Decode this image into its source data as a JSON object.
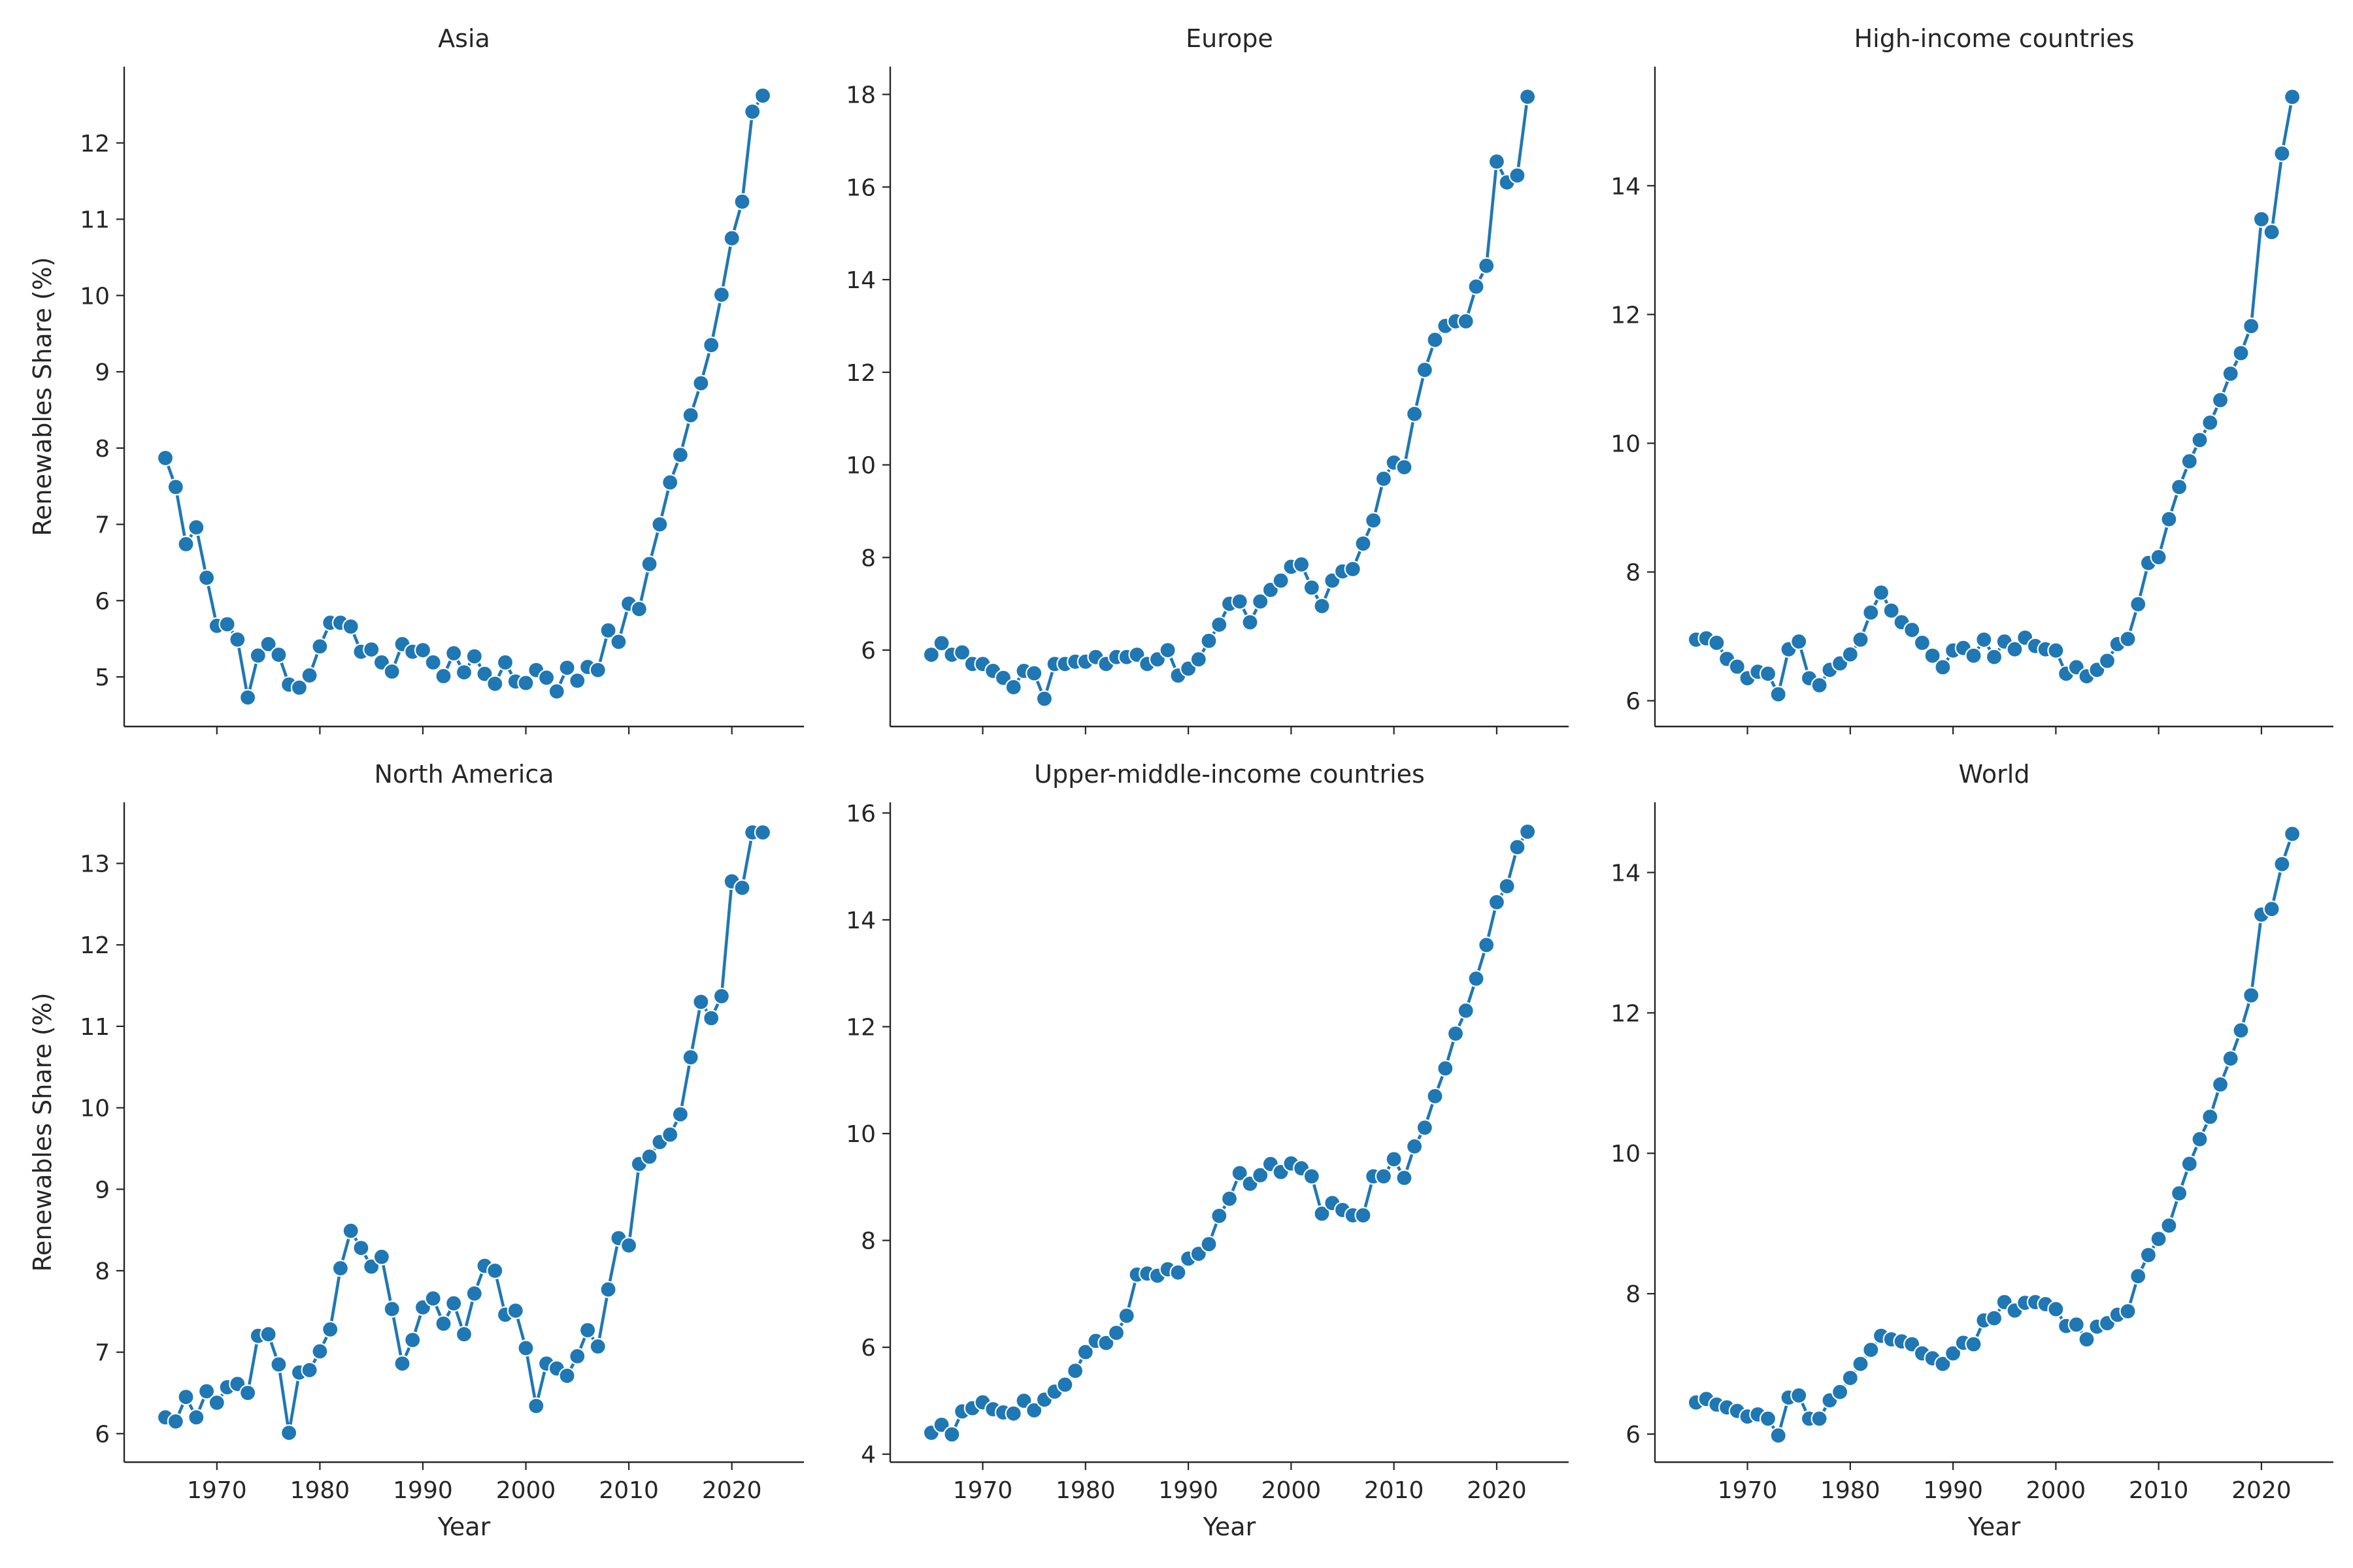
{
  "chart_data": [
    {
      "type": "line",
      "title": "Asia",
      "xlabel": "",
      "ylabel": "Renewables Share (%)",
      "xlim": [
        1961,
        2027
      ],
      "ylim": [
        4.35,
        13.0
      ],
      "yticks": [
        5,
        6,
        7,
        8,
        9,
        10,
        11,
        12
      ],
      "xticks": [
        1970,
        1980,
        1990,
        2000,
        2010,
        2020
      ],
      "show_xtick_labels": false,
      "color": "#1f77b4",
      "x": [
        1965,
        1966,
        1967,
        1968,
        1969,
        1970,
        1971,
        1972,
        1973,
        1974,
        1975,
        1976,
        1977,
        1978,
        1979,
        1980,
        1981,
        1982,
        1983,
        1984,
        1985,
        1986,
        1987,
        1988,
        1989,
        1990,
        1991,
        1992,
        1993,
        1994,
        1995,
        1996,
        1997,
        1998,
        1999,
        2000,
        2001,
        2002,
        2003,
        2004,
        2005,
        2006,
        2007,
        2008,
        2009,
        2010,
        2011,
        2012,
        2013,
        2014,
        2015,
        2016,
        2017,
        2018,
        2019,
        2020,
        2021,
        2022,
        2023
      ],
      "y": [
        7.87,
        7.49,
        6.74,
        6.96,
        6.3,
        5.67,
        5.69,
        5.49,
        4.73,
        5.28,
        5.43,
        5.29,
        4.9,
        4.86,
        5.02,
        5.4,
        5.71,
        5.71,
        5.66,
        5.33,
        5.36,
        5.19,
        5.07,
        5.43,
        5.33,
        5.35,
        5.19,
        5.01,
        5.31,
        5.06,
        5.27,
        5.04,
        4.91,
        5.19,
        4.94,
        4.92,
        5.09,
        4.99,
        4.81,
        5.12,
        4.95,
        5.13,
        5.09,
        5.61,
        5.46,
        5.96,
        5.89,
        6.48,
        7.0,
        7.55,
        7.91,
        8.43,
        8.85,
        9.35,
        10.01,
        10.75,
        11.23,
        12.41,
        12.62
      ]
    },
    {
      "type": "line",
      "title": "Europe",
      "xlabel": "",
      "ylabel": "",
      "xlim": [
        1961,
        2027
      ],
      "ylim": [
        4.35,
        18.6
      ],
      "yticks": [
        6,
        8,
        10,
        12,
        14,
        16,
        18
      ],
      "xticks": [
        1970,
        1980,
        1990,
        2000,
        2010,
        2020
      ],
      "show_xtick_labels": false,
      "color": "#1f77b4",
      "x": [
        1965,
        1966,
        1967,
        1968,
        1969,
        1970,
        1971,
        1972,
        1973,
        1974,
        1975,
        1976,
        1977,
        1978,
        1979,
        1980,
        1981,
        1982,
        1983,
        1984,
        1985,
        1986,
        1987,
        1988,
        1989,
        1990,
        1991,
        1992,
        1993,
        1994,
        1995,
        1996,
        1997,
        1998,
        1999,
        2000,
        2001,
        2002,
        2003,
        2004,
        2005,
        2006,
        2007,
        2008,
        2009,
        2010,
        2011,
        2012,
        2013,
        2014,
        2015,
        2016,
        2017,
        2018,
        2019,
        2020,
        2021,
        2022,
        2023
      ],
      "y": [
        5.9,
        6.15,
        5.9,
        5.95,
        5.7,
        5.7,
        5.55,
        5.4,
        5.2,
        5.55,
        5.5,
        4.95,
        5.7,
        5.7,
        5.75,
        5.75,
        5.85,
        5.7,
        5.85,
        5.85,
        5.9,
        5.7,
        5.8,
        6.0,
        5.45,
        5.6,
        5.8,
        6.2,
        6.55,
        7.0,
        7.05,
        6.6,
        7.05,
        7.3,
        7.5,
        7.8,
        7.85,
        7.35,
        6.95,
        7.5,
        7.7,
        7.75,
        8.3,
        8.8,
        9.7,
        10.05,
        9.95,
        11.1,
        12.05,
        12.7,
        13.0,
        13.1,
        13.1,
        13.85,
        14.3,
        16.55,
        16.1,
        16.25,
        17.95
      ]
    },
    {
      "type": "line",
      "title": "High-income countries",
      "xlabel": "",
      "ylabel": "",
      "xlim": [
        1961,
        2027
      ],
      "ylim": [
        5.6,
        15.85
      ],
      "yticks": [
        6,
        8,
        10,
        12,
        14
      ],
      "xticks": [
        1970,
        1980,
        1990,
        2000,
        2010,
        2020
      ],
      "show_xtick_labels": false,
      "color": "#1f77b4",
      "x": [
        1965,
        1966,
        1967,
        1968,
        1969,
        1970,
        1971,
        1972,
        1973,
        1974,
        1975,
        1976,
        1977,
        1978,
        1979,
        1980,
        1981,
        1982,
        1983,
        1984,
        1985,
        1986,
        1987,
        1988,
        1989,
        1990,
        1991,
        1992,
        1993,
        1994,
        1995,
        1996,
        1997,
        1998,
        1999,
        2000,
        2001,
        2002,
        2003,
        2004,
        2005,
        2006,
        2007,
        2008,
        2009,
        2010,
        2011,
        2012,
        2013,
        2014,
        2015,
        2016,
        2017,
        2018,
        2019,
        2020,
        2021,
        2022,
        2023
      ],
      "y": [
        6.95,
        6.97,
        6.9,
        6.65,
        6.53,
        6.35,
        6.45,
        6.42,
        6.1,
        6.8,
        6.92,
        6.35,
        6.24,
        6.48,
        6.58,
        6.72,
        6.95,
        7.37,
        7.68,
        7.4,
        7.22,
        7.1,
        6.9,
        6.7,
        6.52,
        6.78,
        6.82,
        6.7,
        6.95,
        6.68,
        6.92,
        6.8,
        6.98,
        6.85,
        6.8,
        6.78,
        6.42,
        6.52,
        6.38,
        6.48,
        6.62,
        6.88,
        6.96,
        7.5,
        8.14,
        8.23,
        8.82,
        9.32,
        9.72,
        10.05,
        10.32,
        10.67,
        11.08,
        11.4,
        11.82,
        13.48,
        13.28,
        14.5,
        15.38
      ]
    },
    {
      "type": "line",
      "title": "North America",
      "xlabel": "Year",
      "ylabel": "Renewables Share (%)",
      "xlim": [
        1961,
        2027
      ],
      "ylim": [
        5.65,
        13.75
      ],
      "yticks": [
        6,
        7,
        8,
        9,
        10,
        11,
        12,
        13
      ],
      "xticks": [
        1970,
        1980,
        1990,
        2000,
        2010,
        2020
      ],
      "show_xtick_labels": true,
      "color": "#1f77b4",
      "x": [
        1965,
        1966,
        1967,
        1968,
        1969,
        1970,
        1971,
        1972,
        1973,
        1974,
        1975,
        1976,
        1977,
        1978,
        1979,
        1980,
        1981,
        1982,
        1983,
        1984,
        1985,
        1986,
        1987,
        1988,
        1989,
        1990,
        1991,
        1992,
        1993,
        1994,
        1995,
        1996,
        1997,
        1998,
        1999,
        2000,
        2001,
        2002,
        2003,
        2004,
        2005,
        2006,
        2007,
        2008,
        2009,
        2010,
        2011,
        2012,
        2013,
        2014,
        2015,
        2016,
        2017,
        2018,
        2019,
        2020,
        2021,
        2022,
        2023
      ],
      "y": [
        6.2,
        6.15,
        6.45,
        6.2,
        6.52,
        6.38,
        6.57,
        6.61,
        6.5,
        7.2,
        7.22,
        6.85,
        6.01,
        6.75,
        6.78,
        7.01,
        7.28,
        8.03,
        8.49,
        8.28,
        8.05,
        8.17,
        7.53,
        6.86,
        7.15,
        7.55,
        7.66,
        7.35,
        7.6,
        7.22,
        7.72,
        8.06,
        8.0,
        7.46,
        7.51,
        7.05,
        6.34,
        6.86,
        6.8,
        6.71,
        6.95,
        7.27,
        7.07,
        7.77,
        8.4,
        8.31,
        9.31,
        9.4,
        9.58,
        9.67,
        9.92,
        10.62,
        11.3,
        11.1,
        11.37,
        12.78,
        12.7,
        13.38,
        13.38
      ]
    },
    {
      "type": "line",
      "title": "Upper-middle-income countries",
      "xlabel": "Year",
      "ylabel": "",
      "xlim": [
        1961,
        2027
      ],
      "ylim": [
        3.85,
        16.2
      ],
      "yticks": [
        4,
        6,
        8,
        10,
        12,
        14,
        16
      ],
      "xticks": [
        1970,
        1980,
        1990,
        2000,
        2010,
        2020
      ],
      "show_xtick_labels": true,
      "color": "#1f77b4",
      "x": [
        1965,
        1966,
        1967,
        1968,
        1969,
        1970,
        1971,
        1972,
        1973,
        1974,
        1975,
        1976,
        1977,
        1978,
        1979,
        1980,
        1981,
        1982,
        1983,
        1984,
        1985,
        1986,
        1987,
        1988,
        1989,
        1990,
        1991,
        1992,
        1993,
        1994,
        1995,
        1996,
        1997,
        1998,
        1999,
        2000,
        2001,
        2002,
        2003,
        2004,
        2005,
        2006,
        2007,
        2008,
        2009,
        2010,
        2011,
        2012,
        2013,
        2014,
        2015,
        2016,
        2017,
        2018,
        2019,
        2020,
        2021,
        2022,
        2023
      ],
      "y": [
        4.4,
        4.55,
        4.37,
        4.8,
        4.86,
        4.97,
        4.84,
        4.78,
        4.76,
        5.0,
        4.82,
        5.02,
        5.17,
        5.3,
        5.56,
        5.91,
        6.12,
        6.08,
        6.27,
        6.59,
        7.36,
        7.38,
        7.34,
        7.46,
        7.4,
        7.66,
        7.75,
        7.93,
        8.46,
        8.78,
        9.26,
        9.06,
        9.22,
        9.43,
        9.28,
        9.44,
        9.35,
        9.2,
        8.5,
        8.7,
        8.57,
        8.47,
        8.47,
        9.2,
        9.2,
        9.52,
        9.17,
        9.76,
        10.11,
        10.7,
        11.22,
        11.87,
        12.3,
        12.9,
        13.53,
        14.33,
        14.63,
        15.36,
        15.65
      ]
    },
    {
      "type": "line",
      "title": "World",
      "xlabel": "Year",
      "ylabel": "",
      "xlim": [
        1961,
        2027
      ],
      "ylim": [
        5.6,
        15.0
      ],
      "yticks": [
        6,
        8,
        10,
        12,
        14
      ],
      "xticks": [
        1970,
        1980,
        1990,
        2000,
        2010,
        2020
      ],
      "show_xtick_labels": true,
      "color": "#1f77b4",
      "x": [
        1965,
        1966,
        1967,
        1968,
        1969,
        1970,
        1971,
        1972,
        1973,
        1974,
        1975,
        1976,
        1977,
        1978,
        1979,
        1980,
        1981,
        1982,
        1983,
        1984,
        1985,
        1986,
        1987,
        1988,
        1989,
        1990,
        1991,
        1992,
        1993,
        1994,
        1995,
        1996,
        1997,
        1998,
        1999,
        2000,
        2001,
        2002,
        2003,
        2004,
        2005,
        2006,
        2007,
        2008,
        2009,
        2010,
        2011,
        2012,
        2013,
        2014,
        2015,
        2016,
        2017,
        2018,
        2019,
        2020,
        2021,
        2022,
        2023
      ],
      "y": [
        6.45,
        6.5,
        6.42,
        6.38,
        6.33,
        6.25,
        6.28,
        6.22,
        5.98,
        6.52,
        6.55,
        6.22,
        6.22,
        6.48,
        6.6,
        6.8,
        7.0,
        7.2,
        7.4,
        7.35,
        7.32,
        7.28,
        7.15,
        7.08,
        7.0,
        7.15,
        7.3,
        7.28,
        7.62,
        7.65,
        7.88,
        7.76,
        7.87,
        7.88,
        7.85,
        7.78,
        7.54,
        7.56,
        7.35,
        7.53,
        7.58,
        7.7,
        7.75,
        8.25,
        8.55,
        8.78,
        8.97,
        9.43,
        9.85,
        10.2,
        10.52,
        10.98,
        11.35,
        11.75,
        12.25,
        13.4,
        13.48,
        14.12,
        14.55
      ]
    }
  ]
}
